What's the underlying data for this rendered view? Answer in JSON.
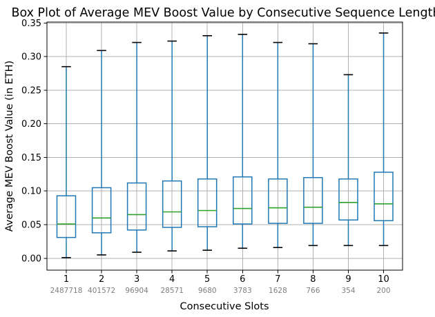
{
  "chart_data": {
    "type": "boxplot",
    "title": "Box Plot of Average MEV Boost Value by Consecutive Sequence Length",
    "xlabel": "Consecutive Slots",
    "ylabel": "Average MEV Boost Value (in ETH)",
    "categories": [
      "1",
      "2",
      "3",
      "4",
      "5",
      "6",
      "7",
      "8",
      "9",
      "10"
    ],
    "counts": [
      "2487718",
      "401572",
      "96904",
      "28571",
      "9680",
      "3783",
      "1628",
      "766",
      "354",
      "200"
    ],
    "yticks": [
      0.0,
      0.05,
      0.1,
      0.15,
      0.2,
      0.25,
      0.3,
      0.35
    ],
    "ylim": [
      -0.0176,
      0.3513
    ],
    "grid": true,
    "legend": "none",
    "boxes": [
      {
        "whislo": 0.001,
        "q1": 0.031,
        "med": 0.051,
        "q3": 0.093,
        "whishi": 0.285
      },
      {
        "whislo": 0.005,
        "q1": 0.038,
        "med": 0.06,
        "q3": 0.105,
        "whishi": 0.309
      },
      {
        "whislo": 0.009,
        "q1": 0.042,
        "med": 0.065,
        "q3": 0.112,
        "whishi": 0.321
      },
      {
        "whislo": 0.011,
        "q1": 0.046,
        "med": 0.069,
        "q3": 0.115,
        "whishi": 0.323
      },
      {
        "whislo": 0.012,
        "q1": 0.047,
        "med": 0.071,
        "q3": 0.118,
        "whishi": 0.331
      },
      {
        "whislo": 0.015,
        "q1": 0.051,
        "med": 0.074,
        "q3": 0.121,
        "whishi": 0.333
      },
      {
        "whislo": 0.016,
        "q1": 0.052,
        "med": 0.075,
        "q3": 0.118,
        "whishi": 0.321
      },
      {
        "whislo": 0.019,
        "q1": 0.052,
        "med": 0.076,
        "q3": 0.12,
        "whishi": 0.319
      },
      {
        "whislo": 0.019,
        "q1": 0.057,
        "med": 0.083,
        "q3": 0.118,
        "whishi": 0.273
      },
      {
        "whislo": 0.019,
        "q1": 0.056,
        "med": 0.081,
        "q3": 0.128,
        "whishi": 0.335
      }
    ],
    "colors": {
      "box": "#1f77b4",
      "whisker": "#1f77b4",
      "median": "#2ca02c",
      "cap": "#000000",
      "grid": "#b0b0b0",
      "spine": "#000000",
      "tick_text": "#000000",
      "count_text": "#7f7f7f",
      "background": "#ffffff"
    }
  }
}
